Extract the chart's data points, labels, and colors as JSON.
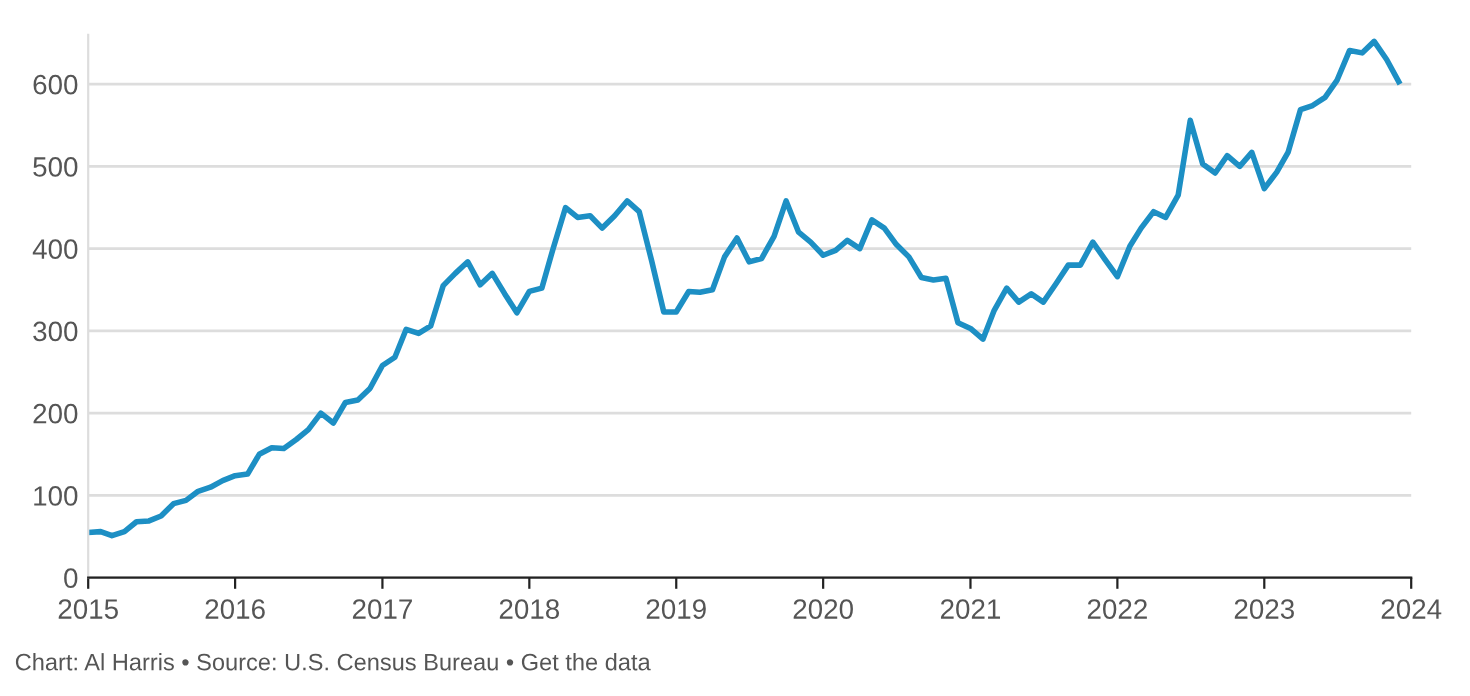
{
  "chart_data": {
    "type": "line",
    "x": [
      "2015-01",
      "2015-02",
      "2015-03",
      "2015-04",
      "2015-05",
      "2015-06",
      "2015-07",
      "2015-08",
      "2015-09",
      "2015-10",
      "2015-11",
      "2015-12",
      "2016-01",
      "2016-02",
      "2016-03",
      "2016-04",
      "2016-05",
      "2016-06",
      "2016-07",
      "2016-08",
      "2016-09",
      "2016-10",
      "2016-11",
      "2016-12",
      "2017-01",
      "2017-02",
      "2017-03",
      "2017-04",
      "2017-05",
      "2017-06",
      "2017-07",
      "2017-08",
      "2017-09",
      "2017-10",
      "2017-11",
      "2017-12",
      "2018-01",
      "2018-02",
      "2018-03",
      "2018-04",
      "2018-05",
      "2018-06",
      "2018-07",
      "2018-08",
      "2018-09",
      "2018-10",
      "2018-11",
      "2018-12",
      "2019-01",
      "2019-02",
      "2019-03",
      "2019-04",
      "2019-05",
      "2019-06",
      "2019-07",
      "2019-08",
      "2019-09",
      "2019-10",
      "2019-11",
      "2019-12",
      "2020-01",
      "2020-02",
      "2020-03",
      "2020-04",
      "2020-05",
      "2020-06",
      "2020-07",
      "2020-08",
      "2020-09",
      "2020-10",
      "2020-11",
      "2020-12",
      "2021-01",
      "2021-02",
      "2021-03",
      "2021-04",
      "2021-05",
      "2021-06",
      "2021-07",
      "2021-08",
      "2021-09",
      "2021-10",
      "2021-11",
      "2021-12",
      "2022-01",
      "2022-02",
      "2022-03",
      "2022-04",
      "2022-05",
      "2022-06",
      "2022-07",
      "2022-08",
      "2022-09",
      "2022-10",
      "2022-11",
      "2022-12",
      "2023-01",
      "2023-02",
      "2023-03",
      "2023-04",
      "2023-05",
      "2023-06",
      "2023-07",
      "2023-08",
      "2023-09",
      "2023-10",
      "2023-11",
      "2023-12"
    ],
    "series": [
      {
        "color": "#1d8fc4",
        "values": [
          55,
          56,
          51,
          56,
          68,
          69,
          75,
          90,
          94,
          105,
          110,
          118,
          124,
          126,
          150,
          158,
          157,
          168,
          180,
          200,
          188,
          213,
          216,
          230,
          258,
          268,
          302,
          297,
          306,
          355,
          370,
          384,
          356,
          370,
          345,
          322,
          348,
          352,
          400,
          450,
          438,
          440,
          425,
          440,
          458,
          445,
          385,
          323,
          323,
          348,
          347,
          350,
          390,
          413,
          384,
          388,
          415,
          458,
          420,
          408,
          392,
          398,
          410,
          400,
          435,
          425,
          405,
          390,
          365,
          362,
          364,
          310,
          303,
          290,
          325,
          352,
          335,
          345,
          335,
          357,
          380,
          380,
          408,
          387,
          366,
          403,
          425,
          445,
          438,
          465,
          556,
          503,
          492,
          513,
          500,
          517,
          473,
          493,
          517,
          569,
          574,
          584,
          605,
          641,
          638,
          652,
          630,
          603
        ]
      }
    ],
    "xlim": [
      "2015-01",
      "2024-01"
    ],
    "xticks": [
      "2015",
      "2016",
      "2017",
      "2018",
      "2019",
      "2020",
      "2021",
      "2022",
      "2023",
      "2024"
    ],
    "ylim": [
      0,
      660
    ],
    "yticks": [
      0,
      100,
      200,
      300,
      400,
      500,
      600
    ],
    "grid": "y",
    "marker": "none",
    "line_style": "solid",
    "annotations": [
      "Chart: Al Harris • Source: U.S. Census Bureau • Get the data"
    ]
  }
}
